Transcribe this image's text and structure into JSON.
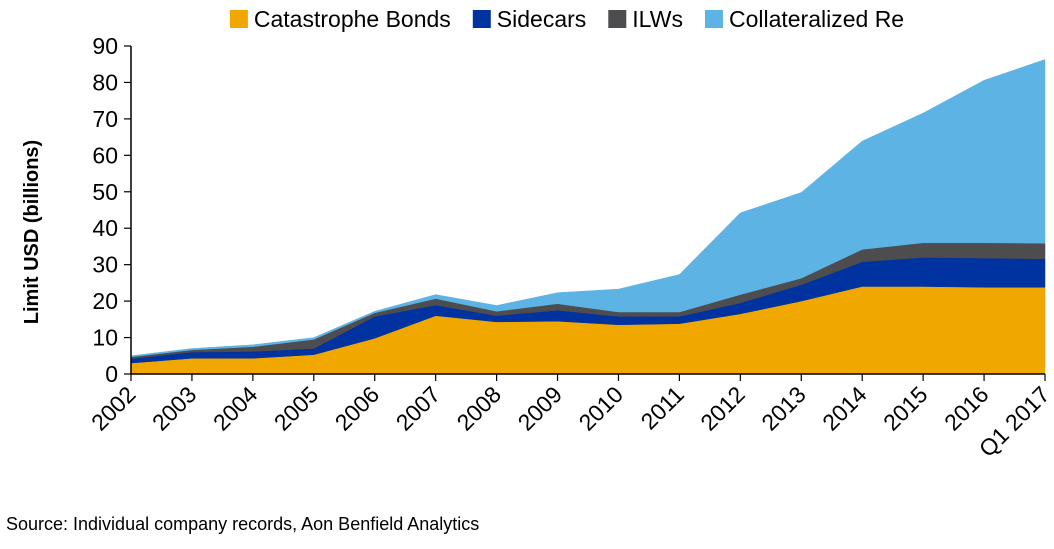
{
  "chart_data": {
    "type": "area",
    "stacked": true,
    "title": "",
    "xlabel": "",
    "ylabel": "Limit USD (billions)",
    "ylim": [
      0,
      90
    ],
    "yticks": [
      0,
      10,
      20,
      30,
      40,
      50,
      60,
      70,
      80,
      90
    ],
    "grid": false,
    "legend_position": "top",
    "categories": [
      "2002",
      "2003",
      "2004",
      "2005",
      "2006",
      "2007",
      "2008",
      "2009",
      "2010",
      "2011",
      "2012",
      "2013",
      "2014",
      "2015",
      "2016",
      "Q1 2017"
    ],
    "series": [
      {
        "name": "Catastrophe Bonds",
        "color": "#F0A800",
        "values": [
          3.0,
          4.3,
          4.3,
          5.3,
          9.8,
          16.0,
          14.3,
          14.5,
          13.5,
          13.8,
          16.5,
          20.0,
          24.0,
          24.0,
          23.8,
          23.8
        ]
      },
      {
        "name": "Sidecars",
        "color": "#0033A0",
        "values": [
          1.2,
          1.7,
          1.9,
          1.7,
          6.0,
          2.9,
          1.7,
          3.0,
          2.3,
          2.0,
          3.0,
          4.5,
          6.8,
          8.0,
          8.0,
          7.8
        ]
      },
      {
        "name": "ILWs",
        "color": "#4D4D4F",
        "values": [
          0.5,
          0.6,
          1.3,
          2.5,
          1.0,
          1.8,
          1.2,
          1.8,
          1.2,
          1.2,
          2.3,
          1.8,
          3.4,
          4.0,
          4.2,
          4.3
        ]
      },
      {
        "name": "Collateralized Re",
        "color": "#5DB3E4",
        "values": [
          0.3,
          0.4,
          0.5,
          0.5,
          0.4,
          1.1,
          1.6,
          3.0,
          6.3,
          10.3,
          22.4,
          23.5,
          29.7,
          35.6,
          44.6,
          50.4
        ]
      }
    ]
  },
  "source_note": "Source: Individual company records, Aon Benfield Analytics"
}
